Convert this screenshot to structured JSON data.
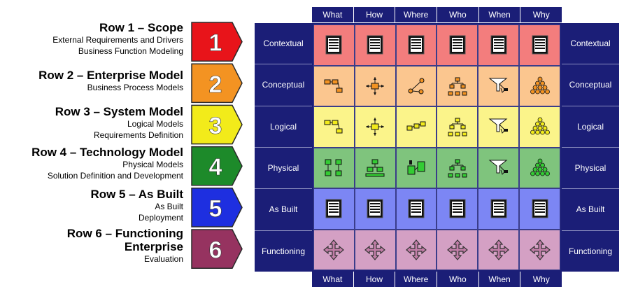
{
  "rows": [
    {
      "num": "1",
      "title": "Row 1 – Scope",
      "subs": [
        "External Requirements and Drivers",
        "Business Function Modeling"
      ],
      "color": "#e8141a"
    },
    {
      "num": "2",
      "title": "Row 2 – Enterprise Model",
      "subs": [
        "Business Process Models"
      ],
      "color": "#f39322"
    },
    {
      "num": "3",
      "title": "Row 3 – System Model",
      "subs": [
        "Logical Models",
        "Requirements Definition"
      ],
      "color": "#f2eb1a"
    },
    {
      "num": "4",
      "title": "Row 4 – Technology Model",
      "subs": [
        "Physical Models",
        "Solution Definition and Development"
      ],
      "color": "#1d8a2a"
    },
    {
      "num": "5",
      "title": "Row 5 – As Built",
      "subs": [
        "As Built",
        "Deployment"
      ],
      "color": "#1e2fe0"
    },
    {
      "num": "6",
      "title": "Row 6 – Functioning Enterprise",
      "subs": [
        "Evaluation"
      ],
      "color": "#963360"
    }
  ],
  "columns": [
    "What",
    "How",
    "Where",
    "Who",
    "When",
    "Why"
  ],
  "side_labels": [
    "Contextual",
    "Conceptual",
    "Logical",
    "Physical",
    "As Built",
    "Functioning"
  ],
  "cell_colors": [
    "#f37d7d",
    "#fbc68f",
    "#fbf48a",
    "#7fc47d",
    "#7c86f4",
    "#d4a0c4"
  ],
  "header_color": "#1b1e77"
}
